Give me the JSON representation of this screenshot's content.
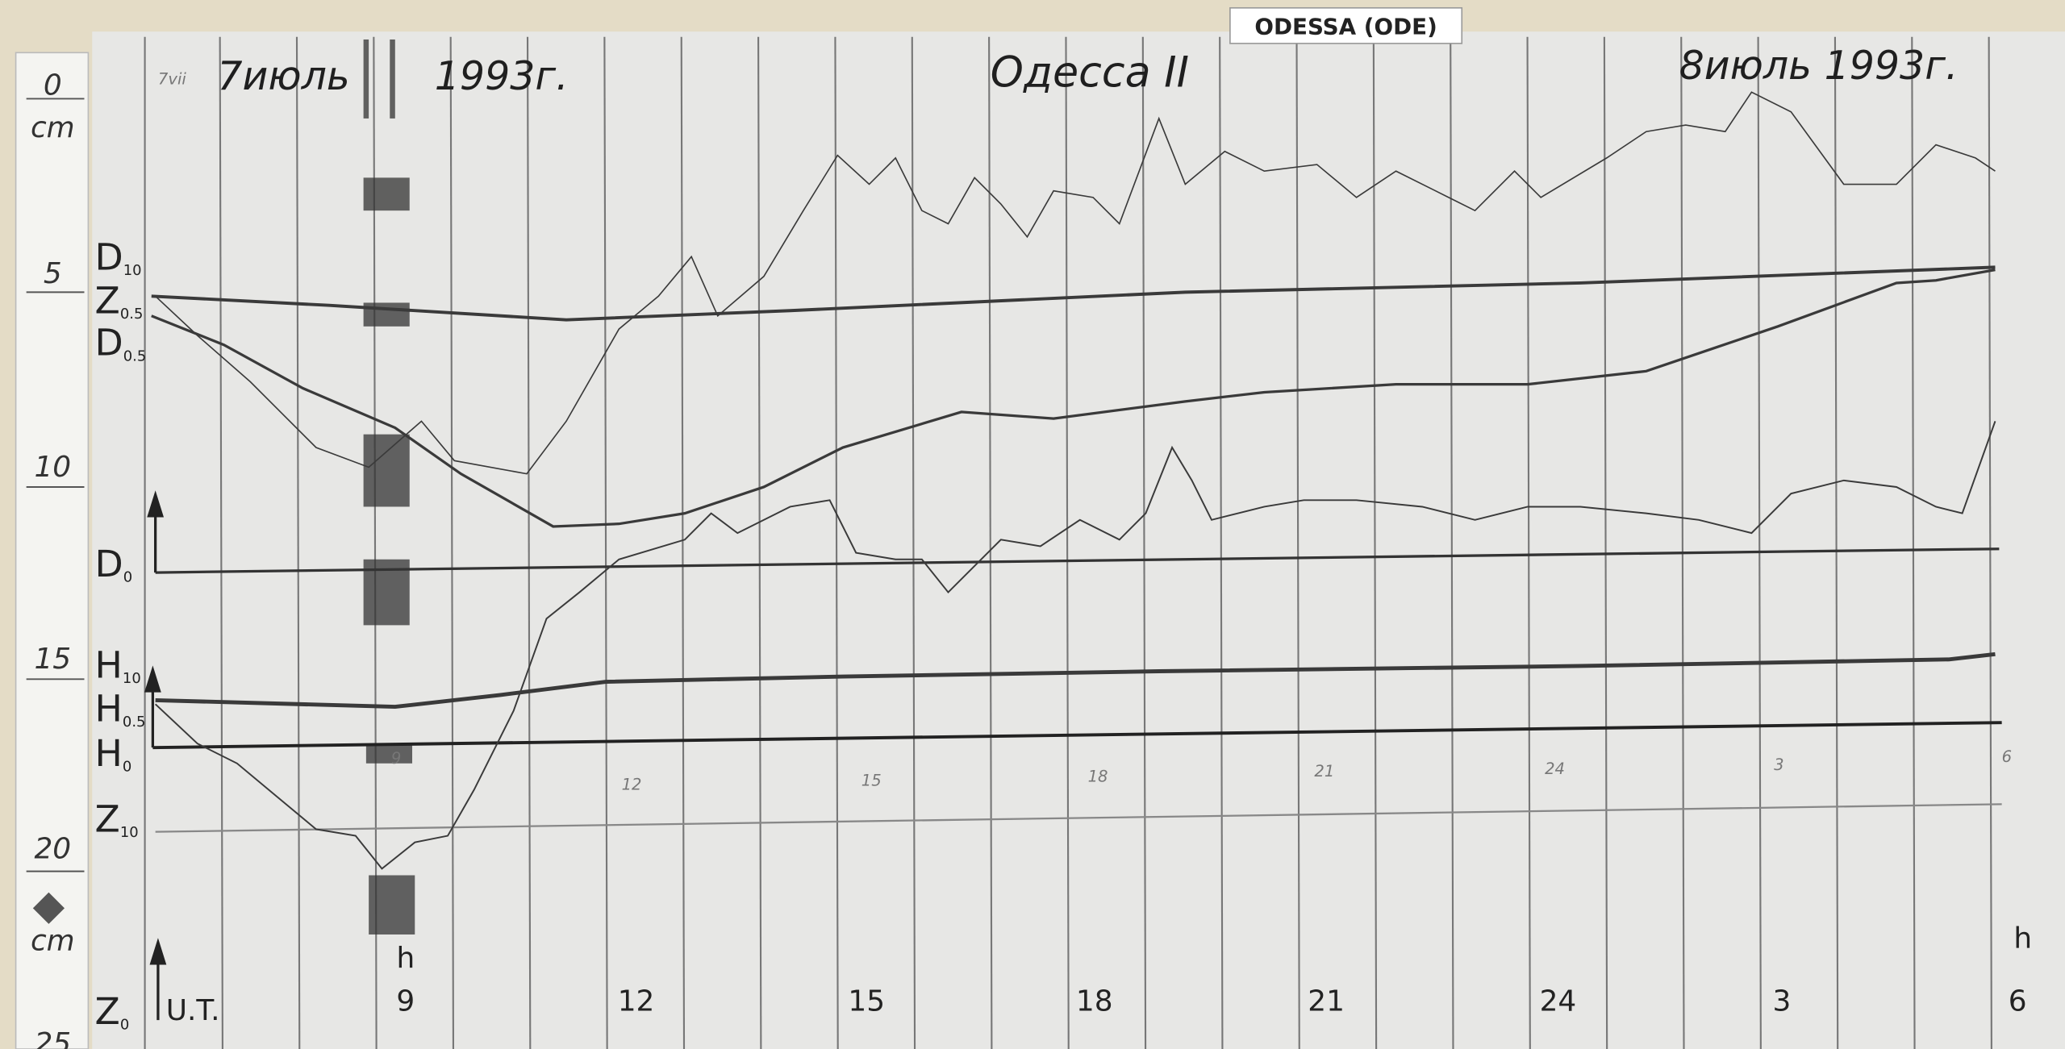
{
  "label": "ODESSA (ODE)",
  "header": {
    "note": "7vii",
    "start_date": "7июль",
    "start_year": "1993г.",
    "station": "Одесса II",
    "end_date": "8июль 1993г."
  },
  "ruler": {
    "zero": "0",
    "unit_top": "cm",
    "five": "5",
    "ten": "10",
    "fifteen": "15",
    "twenty": "20",
    "unit_bottom": "cm",
    "twenty_five": "25"
  },
  "traces": [
    {
      "letter": "D",
      "sub": "10"
    },
    {
      "letter": "Z",
      "sub": "0.5"
    },
    {
      "letter": "D",
      "sub": "0.5"
    },
    {
      "letter": "D",
      "sub": "0"
    },
    {
      "letter": "H",
      "sub": "10"
    },
    {
      "letter": "H",
      "sub": "0.5"
    },
    {
      "letter": "H",
      "sub": "0"
    },
    {
      "letter": "Z",
      "sub": "10"
    },
    {
      "letter": "Z",
      "sub": "0"
    }
  ],
  "time_axis": {
    "unit": "h",
    "unit_label": "U.T.",
    "hours": [
      "9",
      "12",
      "15",
      "18",
      "21",
      "24",
      "3",
      "6"
    ]
  }
}
